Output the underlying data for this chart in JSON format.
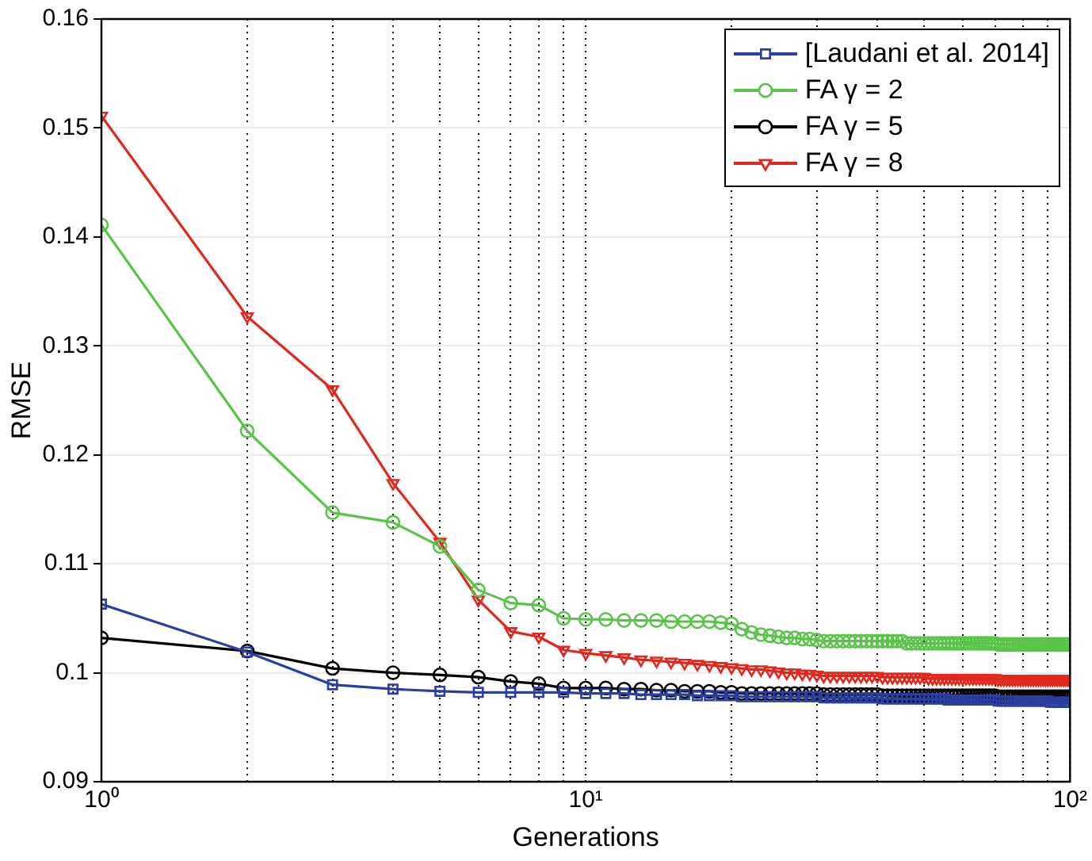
{
  "chart_data": {
    "type": "line",
    "xlabel": "Generations",
    "ylabel": "RMSE",
    "log": "x",
    "grid": true,
    "legend": "top right",
    "line_style": "solid",
    "xlim": [
      1,
      100
    ],
    "ylim": [
      0.09,
      0.16
    ],
    "xticks": [
      {
        "value": 1,
        "label": "10⁰"
      },
      {
        "value": 2,
        "label": null
      },
      {
        "value": 3,
        "label": null
      },
      {
        "value": 4,
        "label": null
      },
      {
        "value": 5,
        "label": null
      },
      {
        "value": 6,
        "label": null
      },
      {
        "value": 7,
        "label": null
      },
      {
        "value": 8,
        "label": null
      },
      {
        "value": 9,
        "label": null
      },
      {
        "value": 10,
        "label": "10¹"
      },
      {
        "value": 20,
        "label": null
      },
      {
        "value": 30,
        "label": null
      },
      {
        "value": 40,
        "label": null
      },
      {
        "value": 50,
        "label": null
      },
      {
        "value": 60,
        "label": null
      },
      {
        "value": 70,
        "label": null
      },
      {
        "value": 80,
        "label": null
      },
      {
        "value": 90,
        "label": null
      },
      {
        "value": 100,
        "label": "10²"
      }
    ],
    "yticks": [
      0.09,
      0.1,
      0.11,
      0.12,
      0.13,
      0.14,
      0.15,
      0.16
    ],
    "x": [
      1,
      2,
      3,
      4,
      5,
      6,
      7,
      8,
      9,
      10,
      11,
      12,
      13,
      14,
      15,
      16,
      17,
      18,
      19,
      20,
      21,
      22,
      23,
      24,
      25,
      26,
      27,
      28,
      29,
      30,
      31,
      32,
      33,
      34,
      35,
      36,
      37,
      38,
      39,
      40,
      41,
      42,
      43,
      44,
      45,
      46,
      47,
      48,
      49,
      50,
      51,
      52,
      53,
      54,
      55,
      56,
      57,
      58,
      59,
      60,
      61,
      62,
      63,
      64,
      65,
      66,
      67,
      68,
      69,
      70,
      71,
      72,
      73,
      74,
      75,
      76,
      77,
      78,
      79,
      80,
      81,
      82,
      83,
      84,
      85,
      86,
      87,
      88,
      89,
      90,
      91,
      92,
      93,
      94,
      95,
      96,
      97,
      98,
      99,
      100
    ],
    "series": [
      {
        "name": "[Laudani et al. 2014]",
        "color": "#2b3fa0",
        "marker": "square",
        "values": [
          0.1063,
          0.1019,
          0.0989,
          0.0985,
          0.0983,
          0.0982,
          0.0982,
          0.0982,
          0.0982,
          0.0981,
          0.0981,
          0.0981,
          0.098,
          0.098,
          0.098,
          0.098,
          0.0979,
          0.0979,
          0.0979,
          0.0979,
          0.0978,
          0.0978,
          0.0978,
          0.0978,
          0.0978,
          0.0978,
          0.0978,
          0.0978,
          0.0978,
          0.0978,
          0.0977,
          0.0977,
          0.0977,
          0.0977,
          0.0977,
          0.0977,
          0.0977,
          0.0977,
          0.0977,
          0.0977,
          0.0976,
          0.0976,
          0.0976,
          0.0976,
          0.0976,
          0.0976,
          0.0976,
          0.0976,
          0.0976,
          0.0976,
          0.0976,
          0.0976,
          0.0976,
          0.0976,
          0.0976,
          0.0975,
          0.0975,
          0.0975,
          0.0975,
          0.0975,
          0.0975,
          0.0975,
          0.0975,
          0.0975,
          0.0975,
          0.0975,
          0.0975,
          0.0975,
          0.0975,
          0.0975,
          0.0974,
          0.0974,
          0.0974,
          0.0974,
          0.0974,
          0.0974,
          0.0974,
          0.0974,
          0.0974,
          0.0974,
          0.0974,
          0.0974,
          0.0974,
          0.0974,
          0.0974,
          0.0974,
          0.0974,
          0.0974,
          0.0974,
          0.0974,
          0.0973,
          0.0973,
          0.0973,
          0.0973,
          0.0973,
          0.0973,
          0.0973,
          0.0973,
          0.0973,
          0.0973
        ]
      },
      {
        "name": "FA  γ = 2",
        "color": "#5ac34a",
        "marker": "circle",
        "values": [
          0.1411,
          0.1222,
          0.1147,
          0.1138,
          0.1116,
          0.1076,
          0.1064,
          0.1062,
          0.105,
          0.1049,
          0.1049,
          0.1048,
          0.1048,
          0.1048,
          0.1047,
          0.1047,
          0.1047,
          0.1047,
          0.1046,
          0.1045,
          0.104,
          0.1037,
          0.1035,
          0.1034,
          0.1033,
          0.1032,
          0.1032,
          0.1031,
          0.1031,
          0.103,
          0.1029,
          0.1029,
          0.1029,
          0.1029,
          0.1029,
          0.1029,
          0.1029,
          0.1029,
          0.1029,
          0.1029,
          0.1029,
          0.1029,
          0.1029,
          0.1029,
          0.1029,
          0.1027,
          0.1027,
          0.1027,
          0.1027,
          0.1027,
          0.1027,
          0.1027,
          0.1027,
          0.1027,
          0.1027,
          0.1027,
          0.1027,
          0.1027,
          0.1027,
          0.1027,
          0.1027,
          0.1027,
          0.1027,
          0.1027,
          0.1027,
          0.1027,
          0.1027,
          0.1027,
          0.1027,
          0.1027,
          0.1026,
          0.1026,
          0.1026,
          0.1026,
          0.1026,
          0.1026,
          0.1026,
          0.1026,
          0.1026,
          0.1026,
          0.1026,
          0.1026,
          0.1026,
          0.1026,
          0.1026,
          0.1026,
          0.1026,
          0.1026,
          0.1026,
          0.1026,
          0.1026,
          0.1026,
          0.1026,
          0.1026,
          0.1026,
          0.1026,
          0.1026,
          0.1026,
          0.1026,
          0.1026
        ]
      },
      {
        "name": "FA  γ = 5",
        "color": "#000000",
        "marker": "circle",
        "values": [
          0.1032,
          0.102,
          0.1004,
          0.1,
          0.0998,
          0.0996,
          0.0992,
          0.099,
          0.0986,
          0.0986,
          0.0986,
          0.0985,
          0.0985,
          0.0984,
          0.0984,
          0.0983,
          0.0983,
          0.0983,
          0.0982,
          0.0982,
          0.0981,
          0.0981,
          0.0981,
          0.0981,
          0.0981,
          0.0981,
          0.0981,
          0.0981,
          0.0981,
          0.0981,
          0.098,
          0.098,
          0.098,
          0.098,
          0.098,
          0.098,
          0.098,
          0.098,
          0.098,
          0.098,
          0.0979,
          0.0979,
          0.0979,
          0.0979,
          0.0979,
          0.0979,
          0.0979,
          0.0979,
          0.0979,
          0.0979,
          0.0979,
          0.0979,
          0.0979,
          0.0979,
          0.0979,
          0.0979,
          0.0979,
          0.0979,
          0.0979,
          0.0979,
          0.0979,
          0.0979,
          0.0979,
          0.0979,
          0.0979,
          0.0979,
          0.0979,
          0.0979,
          0.0979,
          0.0979,
          0.0978,
          0.0978,
          0.0978,
          0.0978,
          0.0978,
          0.0978,
          0.0978,
          0.0978,
          0.0978,
          0.0978,
          0.0978,
          0.0978,
          0.0978,
          0.0978,
          0.0978,
          0.0978,
          0.0978,
          0.0978,
          0.0978,
          0.0978,
          0.0978,
          0.0978,
          0.0978,
          0.0978,
          0.0978,
          0.0978,
          0.0978,
          0.0978,
          0.0978,
          0.0978
        ]
      },
      {
        "name": "FA  γ = 8",
        "color": "#e0281f",
        "marker": "triangle",
        "values": [
          0.1511,
          0.1327,
          0.126,
          0.1174,
          0.112,
          0.1067,
          0.1038,
          0.1033,
          0.1021,
          0.1018,
          0.1016,
          0.1014,
          0.1012,
          0.1011,
          0.101,
          0.1009,
          0.1008,
          0.1007,
          0.1006,
          0.1005,
          0.1004,
          0.1003,
          0.1003,
          0.1002,
          0.1001,
          0.1,
          0.1,
          0.0999,
          0.0999,
          0.0998,
          0.0997,
          0.0997,
          0.0997,
          0.0997,
          0.0997,
          0.0997,
          0.0997,
          0.0997,
          0.0997,
          0.0997,
          0.0996,
          0.0996,
          0.0996,
          0.0996,
          0.0996,
          0.0996,
          0.0996,
          0.0996,
          0.0996,
          0.0996,
          0.0995,
          0.0995,
          0.0995,
          0.0995,
          0.0995,
          0.0995,
          0.0995,
          0.0995,
          0.0995,
          0.0995,
          0.0995,
          0.0995,
          0.0995,
          0.0995,
          0.0995,
          0.0995,
          0.0995,
          0.0995,
          0.0995,
          0.0995,
          0.0994,
          0.0994,
          0.0994,
          0.0994,
          0.0994,
          0.0994,
          0.0994,
          0.0994,
          0.0994,
          0.0994,
          0.0994,
          0.0994,
          0.0994,
          0.0994,
          0.0994,
          0.0994,
          0.0994,
          0.0994,
          0.0994,
          0.0994,
          0.0994,
          0.0994,
          0.0994,
          0.0994,
          0.0994,
          0.0994,
          0.0994,
          0.0994,
          0.0994,
          0.0994
        ]
      }
    ]
  }
}
